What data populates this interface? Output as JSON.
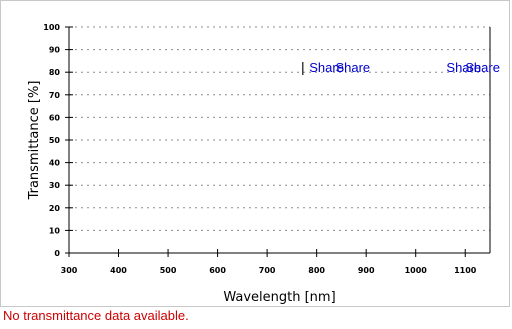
{
  "chart_data": {
    "type": "line",
    "title": "",
    "xlabel": "Wavelength [nm]",
    "ylabel": "Transmittance [%]",
    "xlim": [
      300,
      1150
    ],
    "ylim": [
      0,
      100
    ],
    "x_ticks": [
      300,
      400,
      500,
      600,
      700,
      800,
      900,
      1000,
      1100
    ],
    "y_ticks": [
      0,
      10,
      20,
      30,
      40,
      50,
      60,
      70,
      80,
      90,
      100
    ],
    "grid": "horizontal-dotted",
    "series": [],
    "annotations": [
      {
        "kind": "marker",
        "text": "|",
        "x": 772,
        "y": 80
      },
      {
        "kind": "link",
        "text": "Share",
        "x": 785,
        "y": 80
      },
      {
        "kind": "link",
        "text": "Share",
        "x": 838,
        "y": 80
      },
      {
        "kind": "link",
        "text": "Share",
        "x": 1062,
        "y": 80
      },
      {
        "kind": "link",
        "text": "Share",
        "x": 1100,
        "y": 80
      }
    ],
    "colors": {
      "axis": "#000000",
      "grid": "#8c8c8c",
      "link": "#0000cc"
    }
  },
  "status": {
    "message": "No transmittance data available.",
    "color": "#cc0000"
  }
}
